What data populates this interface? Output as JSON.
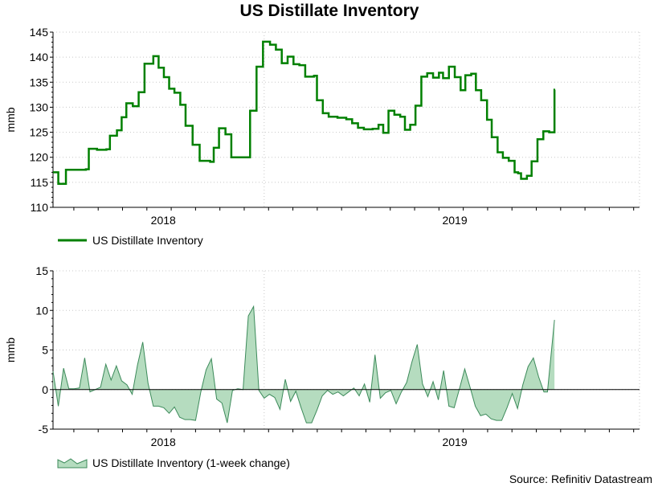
{
  "chart_data": [
    {
      "type": "line",
      "title": "US Distillate Inventory",
      "ylabel": "mmb",
      "ylim": [
        110,
        145
      ],
      "yticks": [
        110,
        115,
        120,
        125,
        130,
        135,
        140,
        145
      ],
      "xlim": [
        0,
        100
      ],
      "xticks": [
        {
          "label": "2018",
          "x": 18.8
        },
        {
          "label": "2019",
          "x": 68.5
        }
      ],
      "series_color": "#008000",
      "legend": "US Distillate Inventory",
      "steps": [
        [
          0,
          117.0
        ],
        [
          0.9,
          114.7
        ],
        [
          2.2,
          117.5
        ],
        [
          5.6,
          117.6
        ],
        [
          6.1,
          121.7
        ],
        [
          7.5,
          121.5
        ],
        [
          9.1,
          121.6
        ],
        [
          9.7,
          124.3
        ],
        [
          10.9,
          125.4
        ],
        [
          11.7,
          128.0
        ],
        [
          12.5,
          130.8
        ],
        [
          13.6,
          130.2
        ],
        [
          14.6,
          133.0
        ],
        [
          15.6,
          138.7
        ],
        [
          17.1,
          140.2
        ],
        [
          18.0,
          137.9
        ],
        [
          18.9,
          136.0
        ],
        [
          19.8,
          133.7
        ],
        [
          20.7,
          132.9
        ],
        [
          21.7,
          130.5
        ],
        [
          22.6,
          126.3
        ],
        [
          23.8,
          122.5
        ],
        [
          25.0,
          119.3
        ],
        [
          26.8,
          119.1
        ],
        [
          27.4,
          121.9
        ],
        [
          28.3,
          125.8
        ],
        [
          29.4,
          124.6
        ],
        [
          30.4,
          120.0
        ],
        [
          32.9,
          120.0
        ],
        [
          33.6,
          129.3
        ],
        [
          34.3,
          129.3
        ],
        [
          34.7,
          138.1
        ],
        [
          35.8,
          143.1
        ],
        [
          37.0,
          142.5
        ],
        [
          38.0,
          141.5
        ],
        [
          39.0,
          138.8
        ],
        [
          40.0,
          140.1
        ],
        [
          41.0,
          138.6
        ],
        [
          42.0,
          138.4
        ],
        [
          43.0,
          136.1
        ],
        [
          44.5,
          136.3
        ],
        [
          45.0,
          131.4
        ],
        [
          46.0,
          128.8
        ],
        [
          47.0,
          128.1
        ],
        [
          48.5,
          127.9
        ],
        [
          50.0,
          127.6
        ],
        [
          51.0,
          126.8
        ],
        [
          52.0,
          125.9
        ],
        [
          53.0,
          125.6
        ],
        [
          54.5,
          125.7
        ],
        [
          55.5,
          126.5
        ],
        [
          56.3,
          124.9
        ],
        [
          57.2,
          129.3
        ],
        [
          58.2,
          128.5
        ],
        [
          59.2,
          128.1
        ],
        [
          60.0,
          125.5
        ],
        [
          60.9,
          126.5
        ],
        [
          61.8,
          130.3
        ],
        [
          62.8,
          136.1
        ],
        [
          63.8,
          136.8
        ],
        [
          64.8,
          135.9
        ],
        [
          65.8,
          136.9
        ],
        [
          66.5,
          135.8
        ],
        [
          67.5,
          138.1
        ],
        [
          68.5,
          136.0
        ],
        [
          69.5,
          133.4
        ],
        [
          70.3,
          136.4
        ],
        [
          71.3,
          136.7
        ],
        [
          72.1,
          133.4
        ],
        [
          73.0,
          131.4
        ],
        [
          74.0,
          127.5
        ],
        [
          74.8,
          124.0
        ],
        [
          75.8,
          121.0
        ],
        [
          76.7,
          119.9
        ],
        [
          77.7,
          119.3
        ],
        [
          78.7,
          117.0
        ],
        [
          79.3,
          116.8
        ],
        [
          79.8,
          115.7
        ],
        [
          80.8,
          116.3
        ],
        [
          81.6,
          119.2
        ],
        [
          82.6,
          123.6
        ],
        [
          83.6,
          125.2
        ],
        [
          84.6,
          125.0
        ],
        [
          85.1,
          125.0
        ],
        [
          85.5,
          133.5
        ]
      ]
    },
    {
      "type": "area",
      "ylabel": "mmb",
      "ylim": [
        -5,
        15
      ],
      "yticks": [
        -5,
        0,
        5,
        10,
        15
      ],
      "xlim": [
        0,
        100
      ],
      "xticks": [
        {
          "label": "2018",
          "x": 18.8
        },
        {
          "label": "2019",
          "x": 68.5
        }
      ],
      "fill_color": "#b5dcbf",
      "line_color": "#3c8a5a",
      "legend": "US Distillate Inventory (1-week change)",
      "points": [
        [
          0.0,
          2.3
        ],
        [
          0.9,
          -2.1
        ],
        [
          1.8,
          2.7
        ],
        [
          2.7,
          0.1
        ],
        [
          3.6,
          0.1
        ],
        [
          4.5,
          0.2
        ],
        [
          5.4,
          4.0
        ],
        [
          6.3,
          -0.3
        ],
        [
          7.2,
          0.0
        ],
        [
          8.1,
          0.3
        ],
        [
          9.0,
          3.2
        ],
        [
          9.9,
          1.2
        ],
        [
          10.8,
          3.0
        ],
        [
          11.7,
          1.1
        ],
        [
          12.6,
          0.6
        ],
        [
          13.5,
          -0.6
        ],
        [
          14.4,
          3.1
        ],
        [
          15.3,
          6.0
        ],
        [
          16.2,
          0.8
        ],
        [
          17.1,
          -2.1
        ],
        [
          18.0,
          -2.1
        ],
        [
          18.9,
          -2.3
        ],
        [
          19.8,
          -3.0
        ],
        [
          20.7,
          -2.2
        ],
        [
          21.6,
          -3.5
        ],
        [
          22.5,
          -3.8
        ],
        [
          23.4,
          -3.8
        ],
        [
          24.3,
          -3.9
        ],
        [
          25.2,
          -0.3
        ],
        [
          26.1,
          2.5
        ],
        [
          27.0,
          3.9
        ],
        [
          27.9,
          -1.2
        ],
        [
          28.8,
          -1.7
        ],
        [
          29.7,
          -4.2
        ],
        [
          30.6,
          -0.1
        ],
        [
          31.5,
          0.1
        ],
        [
          32.4,
          0.0
        ],
        [
          33.3,
          9.3
        ],
        [
          34.2,
          10.5
        ],
        [
          35.1,
          -0.1
        ],
        [
          36.0,
          -1.1
        ],
        [
          36.9,
          -0.6
        ],
        [
          37.8,
          -1.0
        ],
        [
          38.7,
          -2.5
        ],
        [
          39.6,
          1.3
        ],
        [
          40.5,
          -1.5
        ],
        [
          41.4,
          -0.2
        ],
        [
          42.3,
          -2.3
        ],
        [
          43.2,
          -4.2
        ],
        [
          44.1,
          -4.2
        ],
        [
          45.0,
          -2.6
        ],
        [
          45.9,
          -0.8
        ],
        [
          46.8,
          -0.1
        ],
        [
          47.7,
          -0.6
        ],
        [
          48.6,
          -0.3
        ],
        [
          49.5,
          -0.8
        ],
        [
          50.4,
          -0.3
        ],
        [
          51.3,
          0.2
        ],
        [
          52.2,
          -0.8
        ],
        [
          53.1,
          0.7
        ],
        [
          54.0,
          -1.6
        ],
        [
          54.9,
          4.4
        ],
        [
          55.8,
          -1.1
        ],
        [
          56.7,
          -0.4
        ],
        [
          57.6,
          -0.1
        ],
        [
          58.5,
          -1.8
        ],
        [
          59.4,
          -0.3
        ],
        [
          60.3,
          0.9
        ],
        [
          61.2,
          3.5
        ],
        [
          62.1,
          5.7
        ],
        [
          63.0,
          0.7
        ],
        [
          63.9,
          -0.9
        ],
        [
          64.8,
          1.0
        ],
        [
          65.7,
          -1.3
        ],
        [
          66.6,
          2.4
        ],
        [
          67.5,
          -2.1
        ],
        [
          68.4,
          -2.3
        ],
        [
          69.3,
          0.1
        ],
        [
          70.2,
          2.6
        ],
        [
          71.1,
          0.3
        ],
        [
          72.0,
          -2.1
        ],
        [
          72.9,
          -3.3
        ],
        [
          73.8,
          -3.1
        ],
        [
          74.7,
          -3.7
        ],
        [
          75.6,
          -3.9
        ],
        [
          76.5,
          -3.9
        ],
        [
          77.4,
          -2.3
        ],
        [
          78.3,
          -0.5
        ],
        [
          79.2,
          -2.4
        ],
        [
          80.1,
          0.6
        ],
        [
          81.0,
          2.9
        ],
        [
          81.9,
          4.0
        ],
        [
          82.8,
          1.6
        ],
        [
          83.7,
          -0.3
        ],
        [
          84.3,
          -0.3
        ],
        [
          85.5,
          8.8
        ]
      ]
    }
  ],
  "footer": {
    "source": "Source: Refinitiv Datastream"
  }
}
